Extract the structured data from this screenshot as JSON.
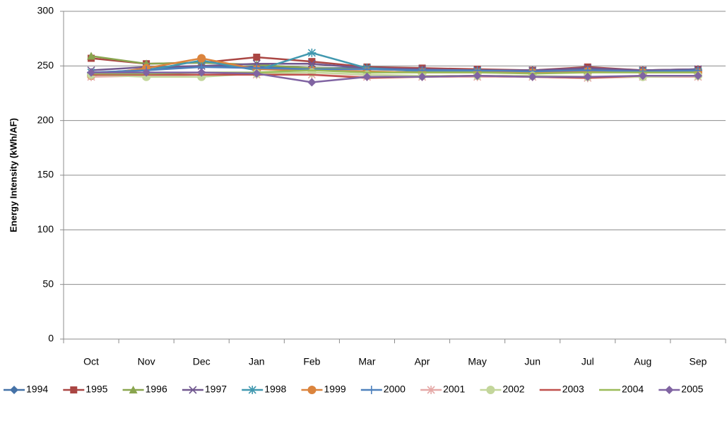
{
  "chart_data": {
    "type": "line",
    "y_axis_label": "Energy Intensity (kWh/AF)",
    "categories": [
      "Oct",
      "Nov",
      "Dec",
      "Jan",
      "Feb",
      "Mar",
      "Apr",
      "May",
      "Jun",
      "Jul",
      "Aug",
      "Sep"
    ],
    "ylim": [
      0,
      300
    ],
    "yticks": [
      0,
      50,
      100,
      150,
      200,
      250,
      300
    ],
    "grid": true,
    "legend": "bottom",
    "series": [
      {
        "name": "1994",
        "color": "#4572a7",
        "marker": "diamond",
        "values": [
          243,
          247,
          250,
          249,
          248,
          248,
          246,
          246,
          246,
          247,
          246,
          247
        ]
      },
      {
        "name": "1995",
        "color": "#aa4643",
        "marker": "square",
        "values": [
          257,
          252,
          253,
          258,
          254,
          249,
          248,
          247,
          246,
          249,
          246,
          247
        ]
      },
      {
        "name": "1996",
        "color": "#89a54e",
        "marker": "triangle",
        "values": [
          259,
          252,
          253,
          251,
          248,
          247,
          246,
          245,
          245,
          246,
          245,
          246
        ]
      },
      {
        "name": "1997",
        "color": "#71588f",
        "marker": "x",
        "values": [
          246,
          249,
          250,
          252,
          252,
          248,
          247,
          246,
          246,
          248,
          246,
          247
        ]
      },
      {
        "name": "1998",
        "color": "#4198af",
        "marker": "star",
        "values": [
          244,
          246,
          255,
          246,
          262,
          248,
          245,
          245,
          244,
          245,
          245,
          245
        ]
      },
      {
        "name": "1999",
        "color": "#db843d",
        "marker": "circle",
        "values": [
          241,
          248,
          257,
          247,
          246,
          245,
          244,
          244,
          244,
          245,
          244,
          244
        ]
      },
      {
        "name": "2000",
        "color": "#4f81bd",
        "marker": "plus",
        "values": [
          244,
          246,
          249,
          248,
          247,
          247,
          246,
          246,
          245,
          246,
          245,
          246
        ]
      },
      {
        "name": "2001",
        "color": "#e5a9a7",
        "marker": "star",
        "values": [
          240,
          241,
          242,
          242,
          242,
          240,
          240,
          240,
          240,
          239,
          240,
          240
        ]
      },
      {
        "name": "2002",
        "color": "#c3d69b",
        "marker": "circle",
        "values": [
          242,
          240,
          240,
          243,
          244,
          242,
          241,
          241,
          241,
          240,
          240,
          241
        ]
      },
      {
        "name": "2003",
        "color": "#c0504d",
        "marker": "none",
        "values": [
          242,
          242,
          242,
          242,
          242,
          239,
          240,
          241,
          240,
          239,
          241,
          241
        ]
      },
      {
        "name": "2004",
        "color": "#9bbb59",
        "marker": "none",
        "values": [
          243,
          243,
          244,
          244,
          246,
          244,
          244,
          244,
          243,
          244,
          244,
          244
        ]
      },
      {
        "name": "2005",
        "color": "#8064a2",
        "marker": "diamond",
        "values": [
          244,
          244,
          244,
          243,
          235,
          240,
          240,
          241,
          240,
          240,
          241,
          241
        ]
      }
    ]
  }
}
